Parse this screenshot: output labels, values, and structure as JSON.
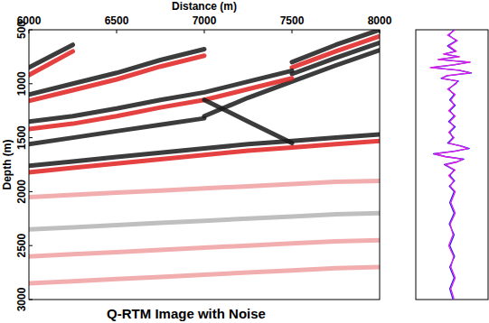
{
  "chart_data": [
    {
      "type": "line",
      "title": "Q-RTM Image with Noise",
      "x_label": "Distance (m)",
      "y_label": "Depth (m)",
      "x": [
        6000,
        6250,
        6500,
        6750,
        7000,
        7250,
        7500,
        7750,
        8000
      ],
      "series": [
        {
          "color": "#1a1a1a",
          "values": [
            850,
            640,
            null,
            null,
            null,
            null,
            null,
            null,
            null
          ]
        },
        {
          "color": "#e02020",
          "values": [
            920,
            700,
            null,
            null,
            null,
            null,
            null,
            null,
            null
          ]
        },
        {
          "color": "#1a1a1a",
          "values": [
            null,
            null,
            null,
            null,
            null,
            null,
            800,
            640,
            500
          ]
        },
        {
          "color": "#e02020",
          "values": [
            null,
            null,
            null,
            null,
            null,
            null,
            850,
            700,
            560
          ]
        },
        {
          "color": "#1a1a1a",
          "values": [
            null,
            null,
            null,
            null,
            null,
            null,
            910,
            760,
            620
          ]
        },
        {
          "color": "#1a1a1a",
          "values": [
            null,
            null,
            null,
            null,
            1300,
            1130,
            980,
            830,
            690
          ]
        },
        {
          "color": "#1a1a1a",
          "values": [
            1100,
            1000,
            900,
            780,
            680,
            null,
            null,
            null,
            null
          ]
        },
        {
          "color": "#e02020",
          "values": [
            1160,
            1060,
            960,
            840,
            740,
            null,
            null,
            null,
            null
          ]
        },
        {
          "color": "#1a1a1a",
          "values": [
            1350,
            1300,
            1230,
            1150,
            1080,
            980,
            880,
            null,
            null
          ]
        },
        {
          "color": "#e02020",
          "values": [
            1420,
            1370,
            1300,
            1220,
            1150,
            1050,
            950,
            null,
            null
          ]
        },
        {
          "color": "#1a1a1a",
          "values": [
            1560,
            1500,
            1440,
            1380,
            1320,
            null,
            null,
            null,
            null
          ]
        },
        {
          "color": "#1a1a1a",
          "values": [
            null,
            null,
            null,
            null,
            1150,
            1350,
            1550,
            null,
            null
          ]
        },
        {
          "color": "#1a1a1a",
          "values": [
            1760,
            1720,
            1680,
            1640,
            1600,
            1560,
            1530,
            1500,
            1470
          ]
        },
        {
          "color": "#e02020",
          "values": [
            1820,
            1780,
            1740,
            1700,
            1660,
            1620,
            1590,
            1560,
            1530
          ]
        },
        {
          "color": "#f0a0a0",
          "values": [
            2050,
            2030,
            2010,
            1990,
            1970,
            1950,
            1930,
            1910,
            1900
          ]
        },
        {
          "color": "#b4b4b4",
          "values": [
            2350,
            2330,
            2310,
            2290,
            2270,
            2250,
            2230,
            2210,
            2200
          ]
        },
        {
          "color": "#f0a0a0",
          "values": [
            2600,
            2580,
            2560,
            2540,
            2520,
            2500,
            2480,
            2460,
            2450
          ]
        },
        {
          "color": "#f0a0a0",
          "values": [
            2850,
            2830,
            2810,
            2790,
            2770,
            2750,
            2730,
            2710,
            2700
          ]
        }
      ],
      "xlim": [
        6000,
        8000
      ],
      "ylim": [
        500,
        3000
      ],
      "xticks": [
        6000,
        6500,
        7000,
        7500,
        8000
      ],
      "yticks": [
        500,
        1000,
        1500,
        2000,
        2500,
        3000
      ]
    },
    {
      "type": "line",
      "x": [
        500,
        550,
        600,
        650,
        700,
        725,
        750,
        775,
        800,
        825,
        850,
        875,
        900,
        925,
        950,
        975,
        1000,
        1050,
        1100,
        1150,
        1200,
        1250,
        1300,
        1350,
        1400,
        1450,
        1500,
        1550,
        1575,
        1600,
        1625,
        1650,
        1675,
        1700,
        1725,
        1750,
        1800,
        1850,
        1900,
        1950,
        2000,
        2100,
        2200,
        2300,
        2400,
        2500,
        2600,
        2700,
        2800,
        2900,
        3000
      ],
      "series": [
        {
          "color": "#2020ff",
          "values": [
            0.1,
            -0.15,
            0.2,
            -0.2,
            0.15,
            -0.35,
            0.3,
            -0.6,
            0.8,
            0.1,
            -0.95,
            0.3,
            0.9,
            -0.2,
            -0.5,
            0.3,
            0.15,
            -0.15,
            0.1,
            -0.1,
            0.15,
            -0.1,
            0.1,
            -0.15,
            0.15,
            -0.1,
            0.05,
            -0.2,
            0.4,
            0.8,
            0.1,
            -0.85,
            -0.3,
            0.55,
            0.2,
            -0.35,
            0.1,
            -0.1,
            0.12,
            -0.12,
            0.1,
            -0.1,
            0.1,
            -0.12,
            0.1,
            -0.1,
            0.12,
            -0.1,
            0.1,
            -0.1,
            0.05
          ]
        },
        {
          "color": "#e020e0",
          "values": [
            0.15,
            -0.2,
            0.25,
            -0.15,
            0.2,
            -0.4,
            0.35,
            -0.65,
            0.85,
            0.05,
            -1.0,
            0.35,
            0.85,
            -0.25,
            -0.45,
            0.25,
            0.2,
            -0.2,
            0.15,
            -0.05,
            0.1,
            -0.15,
            0.15,
            -0.1,
            0.1,
            -0.15,
            0.1,
            -0.15,
            0.35,
            0.75,
            0.15,
            -0.8,
            -0.35,
            0.5,
            0.25,
            -0.3,
            0.15,
            -0.15,
            0.08,
            -0.08,
            0.15,
            -0.05,
            0.15,
            -0.08,
            0.05,
            -0.15,
            0.08,
            -0.05,
            0.15,
            -0.05,
            0.1
          ]
        }
      ],
      "xlim": [
        500,
        3000
      ],
      "ylim": [
        -1,
        1
      ],
      "tick_labels": false
    }
  ]
}
